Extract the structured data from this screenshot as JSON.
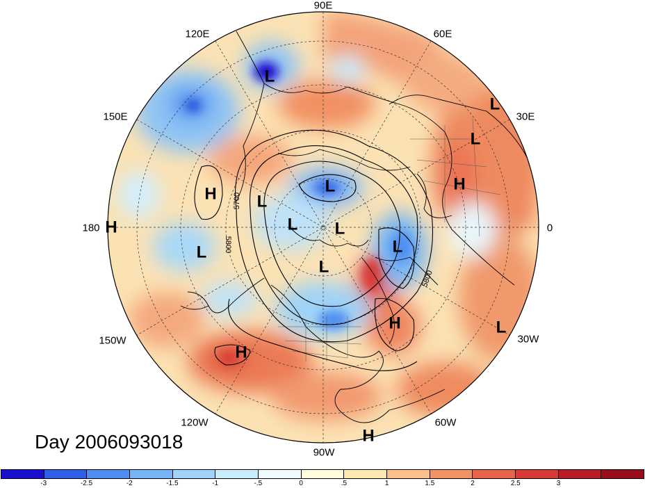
{
  "title": "Day 2006093018",
  "longitude_labels": [
    {
      "text": "90E"
    },
    {
      "text": "60E"
    },
    {
      "text": "30E"
    },
    {
      "text": "0"
    },
    {
      "text": "30W"
    },
    {
      "text": "60W"
    },
    {
      "text": "90W"
    },
    {
      "text": "120W"
    },
    {
      "text": "150W"
    },
    {
      "text": "180"
    },
    {
      "text": "150E"
    },
    {
      "text": "120E"
    }
  ],
  "pressure_centers": [
    "L",
    "L",
    "L",
    "L",
    "L",
    "L",
    "L",
    "L",
    "L",
    "L",
    "L",
    "H",
    "H",
    "H",
    "H",
    "H",
    "H",
    "H"
  ],
  "contour_labels": [
    "5700",
    "5800",
    "5800"
  ],
  "colorbar": {
    "colors": [
      "#1a0fcc",
      "#2e5fe6",
      "#4f8ef0",
      "#76b5f5",
      "#9fd3f7",
      "#c8ecfa",
      "#eefafe",
      "#fffbdc",
      "#fde8b0",
      "#f9c089",
      "#f19364",
      "#e6644a",
      "#d93a36",
      "#b81d28",
      "#9a0e1c"
    ],
    "ticks": [
      "-3",
      "-2.5",
      "-2",
      "-1.5",
      "-1",
      "-.5",
      "0",
      ".5",
      "1",
      "1.5",
      "2",
      "2.5",
      "3"
    ]
  }
}
